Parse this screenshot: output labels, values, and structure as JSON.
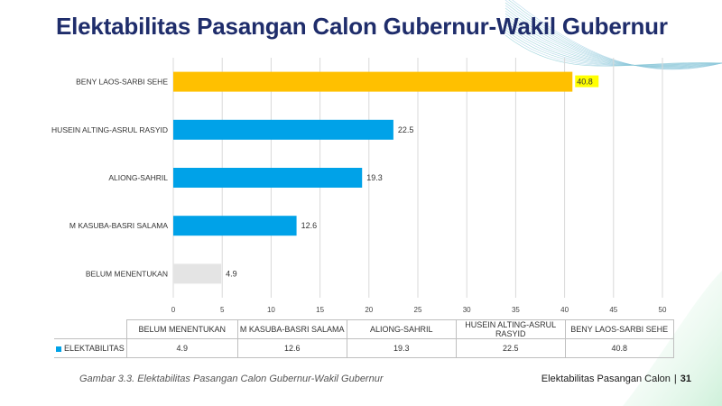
{
  "page": {
    "title": "Elektabilitas Pasangan Calon Gubernur-Wakil Gubernur",
    "caption": "Gambar 3.3. Elektabilitas Pasangan Calon Gubernur-Wakil Gubernur",
    "footer_label": "Elektabilitas Pasangan Calon",
    "footer_separator": "|",
    "page_number": "31"
  },
  "colors": {
    "title": "#1f2d6b",
    "highlight_bar": "#ffc000",
    "default_bar": "#00a2e8",
    "undecided_bar": "#e4e4e4",
    "label_highlight": "#ffff00"
  },
  "chart_data": {
    "type": "bar",
    "orientation": "horizontal",
    "title": "",
    "xlabel": "",
    "ylabel": "",
    "xlim": [
      0,
      50
    ],
    "ticks": [
      0,
      5,
      10,
      15,
      20,
      25,
      30,
      35,
      40,
      45,
      50
    ],
    "grid": true,
    "legend": "data-table",
    "categories": [
      "BENY LAOS-SARBI SEHE",
      "HUSEIN ALTING-ASRUL RASYID",
      "ALIONG-SAHRIL",
      "M KASUBA-BASRI SALAMA",
      "BELUM MENENTUKAN"
    ],
    "series": [
      {
        "name": "ELEKTABILITAS",
        "values": [
          40.8,
          22.5,
          19.3,
          12.6,
          4.9
        ]
      }
    ],
    "bar_colors": [
      "#ffc000",
      "#00a2e8",
      "#00a2e8",
      "#00a2e8",
      "#e4e4e4"
    ],
    "highlighted_label_index": 0
  },
  "data_table": {
    "headers": [
      "BELUM MENENTUKAN",
      "M KASUBA-BASRI SALAMA",
      "ALIONG-SAHRIL",
      "HUSEIN ALTING-ASRUL RASYID",
      "BENY LAOS-SARBI SEHE"
    ],
    "series_name": "ELEKTABILITAS",
    "values": [
      "4.9",
      "12.6",
      "19.3",
      "22.5",
      "40.8"
    ]
  }
}
